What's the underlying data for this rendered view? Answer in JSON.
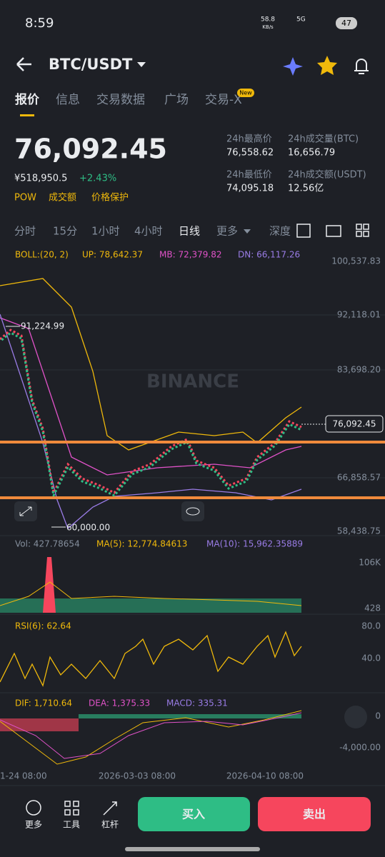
{
  "status": {
    "time": "8:59",
    "speed": "58.8",
    "speed_unit": "KB/s",
    "network": "5G",
    "battery": "47"
  },
  "header": {
    "title": "BTC/USDT"
  },
  "tabs": {
    "items": [
      "报价",
      "信息",
      "交易数据",
      "广场",
      "交易-X"
    ],
    "badge": "New"
  },
  "quote": {
    "price": "76,092.45",
    "fiat": "¥518,950.5",
    "change": "+2.43%",
    "tags": [
      "POW",
      "成交额",
      "价格保护"
    ]
  },
  "stats": [
    {
      "label": "24h最高价",
      "value": "76,558.62"
    },
    {
      "label": "24h成交量(BTC)",
      "value": "16,656.79"
    },
    {
      "label": "24h最低价",
      "value": "74,095.18"
    },
    {
      "label": "24h成交额(USDT)",
      "value": "12.56亿"
    }
  ],
  "intervals": [
    "分时",
    "15分",
    "1小时",
    "4小时",
    "日线",
    "更多",
    "深度"
  ],
  "main": {
    "boll": "BOLL:(20, 2)",
    "up": "UP: 78,642.37",
    "mb": "MB: 72,379.82",
    "dn": "DN: 66,117.26",
    "axis": [
      "100,537.83",
      "92,118.01",
      "83,698.20",
      "66,858.57",
      "58,438.75"
    ],
    "current": "76,092.45",
    "high": "91,224.99",
    "low": "60,000.00",
    "watermark": "BINANCE"
  },
  "volume": {
    "vol": "Vol: 427.78654",
    "ma5": "MA(5): 12,774.84613",
    "ma10": "MA(10): 15,962.35889",
    "axis": [
      "106K",
      "428"
    ]
  },
  "rsi": {
    "label": "RSI(6): 62.64",
    "axis": [
      "80.0",
      "40.0"
    ]
  },
  "macd": {
    "dif": "DIF: 1,710.64",
    "dea": "DEA: 1,375.33",
    "macd": "MACD: 335.31",
    "axis": [
      "0",
      "-4,000.00"
    ]
  },
  "dates": [
    "1-24 08:00",
    "2026-03-03 08:00",
    "2026-04-10 08:00"
  ],
  "bottom": {
    "tools": [
      "更多",
      "工具",
      "杠杆"
    ],
    "buy": "买入",
    "sell": "卖出"
  }
}
